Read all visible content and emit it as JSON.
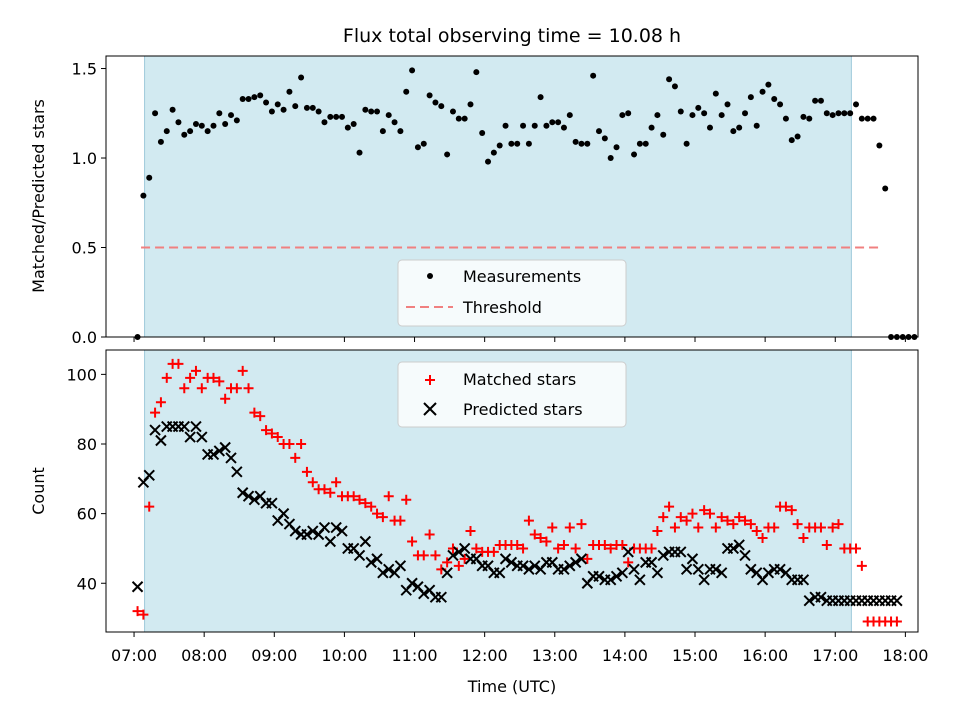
{
  "chart_data": {
    "title": "Flux total observing time = 10.08 h",
    "xlabel": "Time (UTC)",
    "x_ticks": [
      "07:00",
      "08:00",
      "09:00",
      "10:00",
      "11:00",
      "12:00",
      "13:00",
      "14:00",
      "15:00",
      "16:00",
      "17:00",
      "18:00"
    ],
    "x_range_hours": [
      6.6,
      18.18
    ],
    "observing_window_hours": [
      7.15,
      17.23
    ],
    "colors": {
      "window": "#add8e6",
      "measurements": "#000000",
      "threshold": "#f08080",
      "matched": "#ff0000",
      "predicted": "#000000"
    },
    "panels": [
      {
        "type": "scatter",
        "ylabel": "Matched/Predicted stars",
        "ylim": [
          0,
          1.57
        ],
        "yticks": [
          "0.0",
          "0.5",
          "1.0",
          "1.5"
        ],
        "legend": [
          "Measurements",
          "Threshold"
        ],
        "legend_placement": "lower-center",
        "threshold": 0.5,
        "threshold_x_hours": [
          7.1,
          17.63
        ],
        "measurements": {
          "name": "Measurements",
          "x_start_hours": 7.05,
          "x_step_hours": 0.0833,
          "values": [
            0.0,
            0.79,
            0.89,
            1.25,
            1.09,
            1.15,
            1.27,
            1.2,
            1.13,
            1.15,
            1.19,
            1.18,
            1.15,
            1.18,
            1.25,
            1.19,
            1.24,
            1.21,
            1.33,
            1.33,
            1.34,
            1.35,
            1.31,
            1.26,
            1.3,
            1.27,
            1.37,
            1.29,
            1.45,
            1.28,
            1.28,
            1.26,
            1.2,
            1.23,
            1.23,
            1.23,
            1.17,
            1.19,
            1.03,
            1.27,
            1.26,
            1.26,
            1.15,
            1.24,
            1.2,
            1.15,
            1.37,
            1.49,
            1.06,
            1.08,
            1.35,
            1.31,
            1.29,
            1.02,
            1.26,
            1.22,
            1.22,
            1.3,
            1.48,
            1.14,
            0.98,
            1.03,
            1.07,
            1.18,
            1.08,
            1.08,
            1.18,
            1.08,
            1.18,
            1.34,
            1.18,
            1.2,
            1.2,
            1.17,
            1.24,
            1.09,
            1.08,
            1.08,
            1.46,
            1.15,
            1.11,
            1.0,
            1.06,
            1.24,
            1.25,
            1.02,
            1.08,
            1.08,
            1.17,
            1.24,
            1.13,
            1.44,
            1.4,
            1.26,
            1.08,
            1.24,
            1.28,
            1.25,
            1.17,
            1.36,
            1.24,
            1.3,
            1.15,
            1.17,
            1.25,
            1.34,
            1.18,
            1.37,
            1.41,
            1.33,
            1.3,
            1.22,
            1.1,
            1.12,
            1.23,
            1.22,
            1.32,
            1.32,
            1.25,
            1.24,
            1.25,
            1.25,
            1.25,
            1.3,
            1.22,
            1.22,
            1.22,
            1.07,
            0.83,
            0.0,
            0.0,
            0.0,
            0.0,
            0.0
          ]
        }
      },
      {
        "type": "scatter",
        "ylabel": "Count",
        "ylim": [
          26,
          107
        ],
        "yticks": [
          "40",
          "60",
          "80",
          "100"
        ],
        "legend": [
          "Matched stars",
          "Predicted stars"
        ],
        "legend_placement": "upper-center",
        "x_start_hours": 7.05,
        "x_step_hours": 0.0833,
        "series": [
          {
            "name": "Matched stars",
            "values": [
              32,
              31,
              62,
              89,
              92,
              99,
              103,
              103,
              96,
              99,
              101,
              96,
              99,
              99,
              98,
              93,
              96,
              96,
              101,
              96,
              89,
              88,
              84,
              83,
              82,
              80,
              80,
              76,
              80,
              72,
              69,
              67,
              67,
              66,
              69,
              65,
              65,
              65,
              64,
              63,
              62,
              60,
              59,
              65,
              58,
              58,
              64,
              52,
              48,
              48,
              54,
              48,
              44,
              46,
              50,
              45,
              47,
              55,
              50,
              49,
              49,
              49,
              51,
              51,
              51,
              51,
              50,
              58,
              54,
              53,
              52,
              56,
              50,
              51,
              56,
              50,
              57,
              47,
              51,
              51,
              51,
              50,
              51,
              51,
              46,
              50,
              50,
              50,
              50,
              55,
              59,
              62,
              56,
              59,
              58,
              60,
              56,
              61,
              60,
              56,
              59,
              58,
              57,
              59,
              58,
              57,
              55,
              53,
              56,
              56,
              62,
              62,
              61,
              57,
              53,
              56,
              56,
              56,
              51,
              56,
              57,
              50,
              50,
              50,
              45,
              29,
              29,
              29,
              29,
              29,
              29
            ]
          },
          {
            "name": "Predicted stars",
            "values": [
              39,
              69,
              71,
              84,
              81,
              85,
              85,
              85,
              85,
              82,
              85,
              82,
              77,
              77,
              78,
              79,
              76,
              72,
              66,
              65,
              64,
              65,
              63,
              63,
              58,
              60,
              57,
              55,
              54,
              54,
              55,
              54,
              56,
              52,
              56,
              55,
              50,
              50,
              48,
              52,
              46,
              47,
              43,
              44,
              43,
              45,
              38,
              40,
              39,
              37,
              38,
              36,
              36,
              43,
              48,
              49,
              50,
              47,
              47,
              45,
              45,
              43,
              43,
              47,
              46,
              45,
              45,
              44,
              45,
              44,
              46,
              46,
              44,
              44,
              45,
              46,
              47,
              40,
              42,
              42,
              41,
              41,
              42,
              43,
              49,
              44,
              41,
              46,
              46,
              43,
              48,
              49,
              49,
              49,
              44,
              47,
              44,
              41,
              44,
              44,
              43,
              50,
              50,
              51,
              48,
              44,
              43,
              41,
              43,
              44,
              44,
              43,
              41,
              41,
              41,
              35,
              36,
              36,
              35,
              35,
              35,
              35,
              35,
              35,
              35,
              35,
              35,
              35,
              35,
              35,
              35
            ]
          }
        ]
      }
    ]
  }
}
